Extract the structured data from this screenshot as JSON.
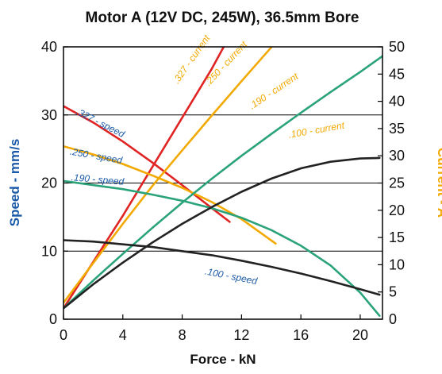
{
  "chart_data": {
    "type": "line",
    "title": "Motor A (12V DC, 245W), 36.5mm Bore",
    "xlabel": "Force - kN",
    "ylabel": "Speed - mm/s",
    "y2label": "Current - A",
    "xlim": [
      0,
      21.5
    ],
    "ylim": [
      0,
      40
    ],
    "y2lim": [
      0,
      50
    ],
    "xticks": [
      0,
      4,
      8,
      12,
      16,
      20
    ],
    "yticks": [
      0,
      10,
      20,
      30,
      40
    ],
    "y2ticks": [
      0,
      5,
      10,
      15,
      20,
      25,
      30,
      35,
      40,
      45,
      50
    ],
    "grid": "horizontal lines at left-axis ticks",
    "colors": {
      "speed_axis": "#1a5aa8",
      "current_axis": "#f2a900",
      "s327": "#e02424",
      "s250": "#f2a900",
      "s190": "#2aa37a",
      "s100": "#222222",
      "annotation_speed": "#1a5aa8",
      "annotation_current": "#f2a900"
    },
    "series": [
      {
        "name": ".327 - speed",
        "axis": "left",
        "color_key": "s327",
        "x": [
          0,
          2,
          4,
          6,
          8,
          10,
          11.2
        ],
        "values": [
          31.3,
          28.9,
          26.1,
          23.0,
          19.7,
          16.3,
          14.3
        ]
      },
      {
        "name": ".327 - current",
        "axis": "right",
        "color_key": "s327",
        "x": [
          0,
          2,
          4,
          6,
          8,
          10,
          11.8
        ],
        "values": [
          2,
          10.5,
          19,
          28,
          37,
          46,
          55
        ]
      },
      {
        "name": ".250 - speed",
        "axis": "left",
        "color_key": "s250",
        "x": [
          0,
          2,
          4,
          6,
          8,
          10,
          12,
          14.3
        ],
        "values": [
          25.4,
          24.2,
          22.8,
          21.1,
          19.3,
          17.2,
          14.7,
          11.1
        ]
      },
      {
        "name": ".250 - current",
        "axis": "right",
        "color_key": "s250",
        "x": [
          0,
          2,
          4,
          6,
          8,
          10,
          12,
          14
        ],
        "values": [
          3,
          10.3,
          17.5,
          24.5,
          31,
          37.4,
          43.7,
          49.9
        ]
      },
      {
        "name": ".190 - speed",
        "axis": "left",
        "color_key": "s190",
        "x": [
          0,
          2,
          4,
          6,
          8,
          10,
          12,
          14,
          16,
          18,
          20,
          21.3
        ],
        "values": [
          20.3,
          19.7,
          19.1,
          18.3,
          17.4,
          16.3,
          14.9,
          13.1,
          10.8,
          7.9,
          3.9,
          0.5
        ]
      },
      {
        "name": ".190 - current",
        "axis": "right",
        "color_key": "s190",
        "x": [
          0,
          2,
          4,
          6,
          8,
          10,
          12,
          14,
          16,
          18,
          20,
          21.5
        ],
        "values": [
          2,
          7.1,
          12,
          16.8,
          21.4,
          25.8,
          30,
          34,
          37.9,
          41.7,
          45.4,
          48.3
        ]
      },
      {
        "name": ".100 - speed",
        "axis": "left",
        "color_key": "s100",
        "x": [
          0,
          2,
          4,
          6,
          8,
          10,
          12,
          14,
          16,
          18,
          20,
          21.3
        ],
        "values": [
          11.6,
          11.4,
          11.0,
          10.6,
          10.0,
          9.4,
          8.6,
          7.7,
          6.7,
          5.6,
          4.4,
          3.6
        ]
      },
      {
        "name": ".100 - current",
        "axis": "right",
        "color_key": "s100",
        "x": [
          0,
          2,
          4,
          6,
          8,
          10,
          12,
          14,
          16,
          18,
          20,
          21.3
        ],
        "values": [
          2,
          6.4,
          10.4,
          14.1,
          17.5,
          20.6,
          23.4,
          25.8,
          27.7,
          28.9,
          29.5,
          29.6
        ]
      }
    ],
    "annotations": [
      {
        "text": ".327 - speed",
        "kind": "speed",
        "x": 0.8,
        "y": 30.2,
        "angle": 27
      },
      {
        "text": ".250 - speed",
        "kind": "speed",
        "x": 0.4,
        "y": 24.2,
        "angle": 10
      },
      {
        "text": ".190 - speed",
        "kind": "speed",
        "x": 0.5,
        "y": 20.4,
        "angle": 5
      },
      {
        "text": ".100 - speed",
        "kind": "speed",
        "x": 9.5,
        "y": 6.6,
        "angle": 11
      },
      {
        "text": ".327 - current",
        "kind": "current",
        "x": 7.7,
        "y": 34.5,
        "angle": -55
      },
      {
        "text": ".250 - current",
        "kind": "current",
        "x": 9.8,
        "y": 34.2,
        "angle": -47
      },
      {
        "text": ".190 - current",
        "kind": "current",
        "x": 12.7,
        "y": 30.8,
        "angle": -34
      },
      {
        "text": ".100 - current",
        "kind": "current",
        "x": 15.2,
        "y": 26.6,
        "angle": -10
      }
    ]
  }
}
